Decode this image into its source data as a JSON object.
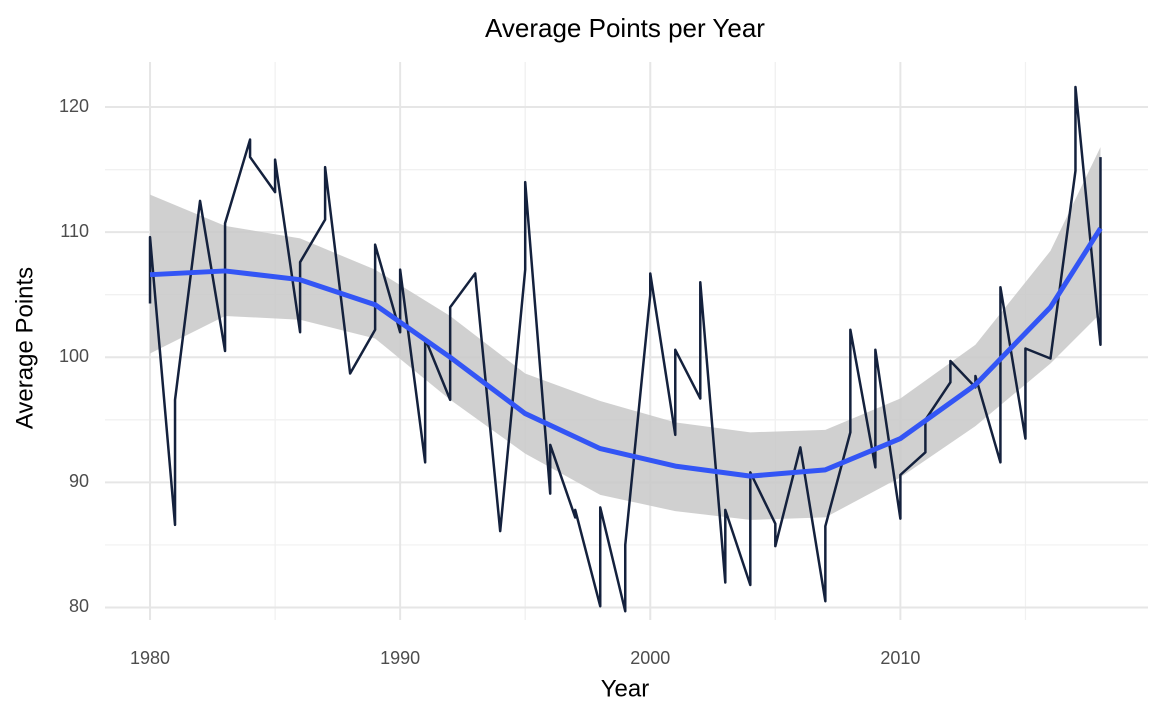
{
  "chart_data": {
    "type": "line",
    "title": "Average Points per Year",
    "x_label": "Year",
    "y_label": "Average Points",
    "xlim": [
      1978.2,
      2019.9
    ],
    "ylim": [
      79,
      123.6
    ],
    "xticks": [
      1980,
      1990,
      2000,
      2010
    ],
    "yticks": [
      80,
      90,
      100,
      110,
      120
    ],
    "grid": true,
    "series": [
      {
        "color": "#14213d",
        "x": [
          1980,
          1980,
          1981,
          1981,
          1982,
          1983,
          1983,
          1984,
          1984,
          1985,
          1985,
          1986,
          1986,
          1987,
          1987,
          1988,
          1989,
          1989,
          1990,
          1990,
          1991,
          1991,
          1992,
          1992,
          1993,
          1994,
          1995,
          1995,
          1996,
          1996,
          1997,
          1997,
          1998,
          1998,
          1999,
          1999,
          2000,
          2000,
          2001,
          2001,
          2002,
          2002,
          2003,
          2003,
          2004,
          2004,
          2005,
          2005,
          2006,
          2007,
          2007,
          2008,
          2008,
          2009,
          2009,
          2010,
          2010,
          2011,
          2011,
          2012,
          2012,
          2013,
          2013,
          2014,
          2014,
          2015,
          2015,
          2016,
          2017,
          2017,
          2018,
          2018
        ],
        "values": [
          104.3,
          109.6,
          86.6,
          96.6,
          112.5,
          100.5,
          110.7,
          117.4,
          116,
          113.2,
          115.8,
          102,
          107.6,
          111,
          115.2,
          98.7,
          102.2,
          109,
          102,
          107,
          91.6,
          101.5,
          96.6,
          104,
          106.7,
          86.1,
          107,
          114,
          89.1,
          93,
          87.2,
          87.8,
          80.1,
          88,
          79.7,
          85,
          105,
          106.7,
          93.8,
          100.6,
          96.7,
          106,
          82,
          87.8,
          81.8,
          90.8,
          86.7,
          84.9,
          92.8,
          80.5,
          86.5,
          94,
          102.2,
          91.2,
          100.6,
          87.1,
          90.6,
          92.4,
          95,
          98,
          99.7,
          97.6,
          98.5,
          91.6,
          105.6,
          93.5,
          100.7,
          99.9,
          114.9,
          121.6,
          101,
          116
        ]
      },
      {
        "color": "#3355f5",
        "band_color": "#c8c8c8",
        "x": [
          1980,
          1983,
          1986,
          1989,
          1992,
          1995,
          1998,
          2001,
          2004,
          2007,
          2010,
          2013,
          2016,
          2018
        ],
        "values": [
          106.6,
          106.9,
          106.2,
          104.2,
          100,
          95.5,
          92.7,
          91.3,
          90.5,
          91,
          93.5,
          97.8,
          104,
          110.3
        ],
        "lower": [
          100.3,
          103.3,
          103,
          101.5,
          96.6,
          92.3,
          89,
          87.7,
          87,
          87.2,
          90.4,
          94.5,
          99.5,
          103.5
        ],
        "upper": [
          113,
          110.5,
          109.5,
          107,
          103.3,
          98.7,
          96.5,
          94.8,
          94,
          94.2,
          96.7,
          101,
          108.5,
          116.8
        ]
      }
    ]
  }
}
